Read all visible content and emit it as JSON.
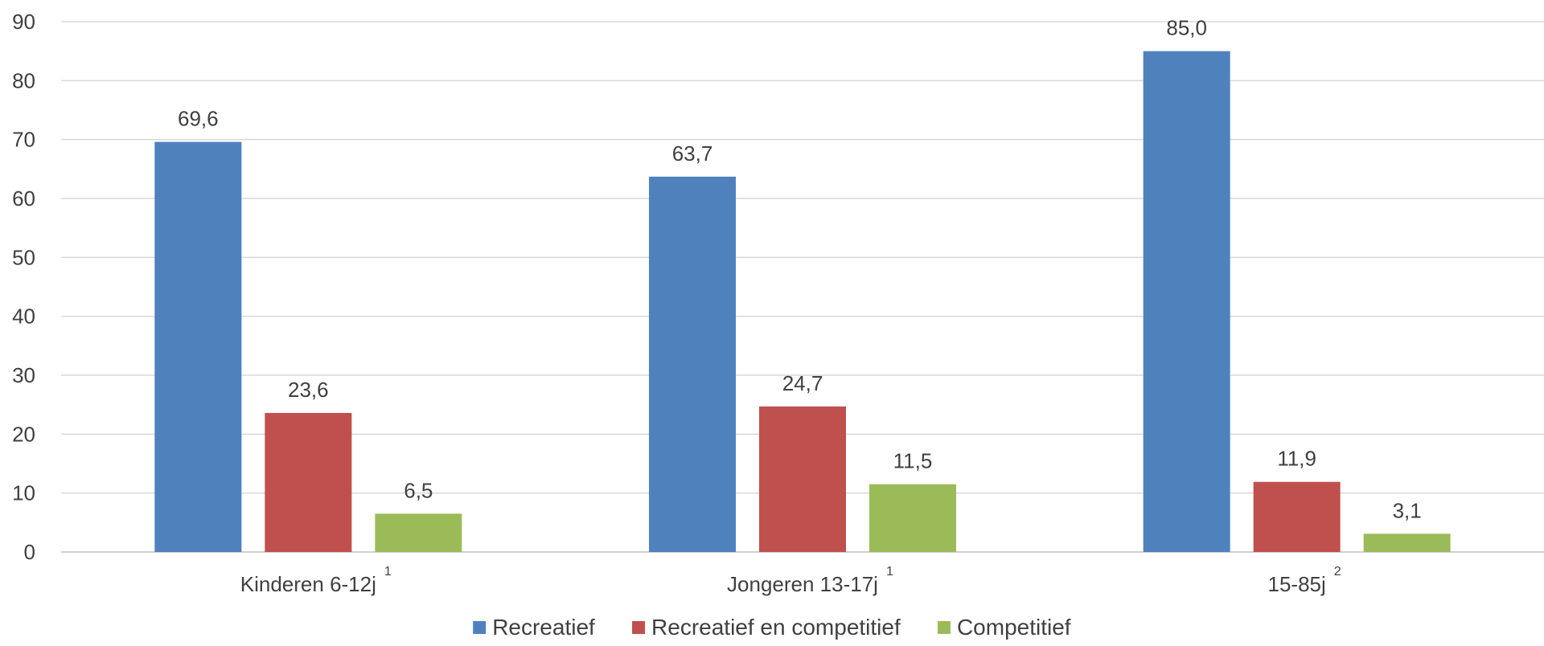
{
  "chart_data": {
    "type": "bar",
    "categories": [
      "Kinderen 6-12j",
      "Jongeren 13-17j",
      "15-85j"
    ],
    "category_superscripts": [
      "1",
      "1",
      "2"
    ],
    "series": [
      {
        "name": "Recreatief",
        "color": "#4f81bd",
        "values": [
          69.6,
          63.7,
          85.0
        ],
        "labels": [
          "69,6",
          "63,7",
          "85,0"
        ]
      },
      {
        "name": "Recreatief en competitief",
        "color": "#c0504d",
        "values": [
          23.6,
          24.7,
          11.9
        ],
        "labels": [
          "23,6",
          "24,7",
          "11,9"
        ]
      },
      {
        "name": "Competitief",
        "color": "#9bbb59",
        "values": [
          6.5,
          11.5,
          3.1
        ],
        "labels": [
          "6,5",
          "11,5",
          "3,1"
        ]
      }
    ],
    "y_ticks": [
      "0",
      "10",
      "20",
      "30",
      "40",
      "50",
      "60",
      "70",
      "80",
      "90"
    ],
    "ylim": [
      0,
      90
    ],
    "grid": true,
    "legend_position": "bottom",
    "gridline_color": "#d9d9d9",
    "axis_color": "#bfbfbf"
  }
}
